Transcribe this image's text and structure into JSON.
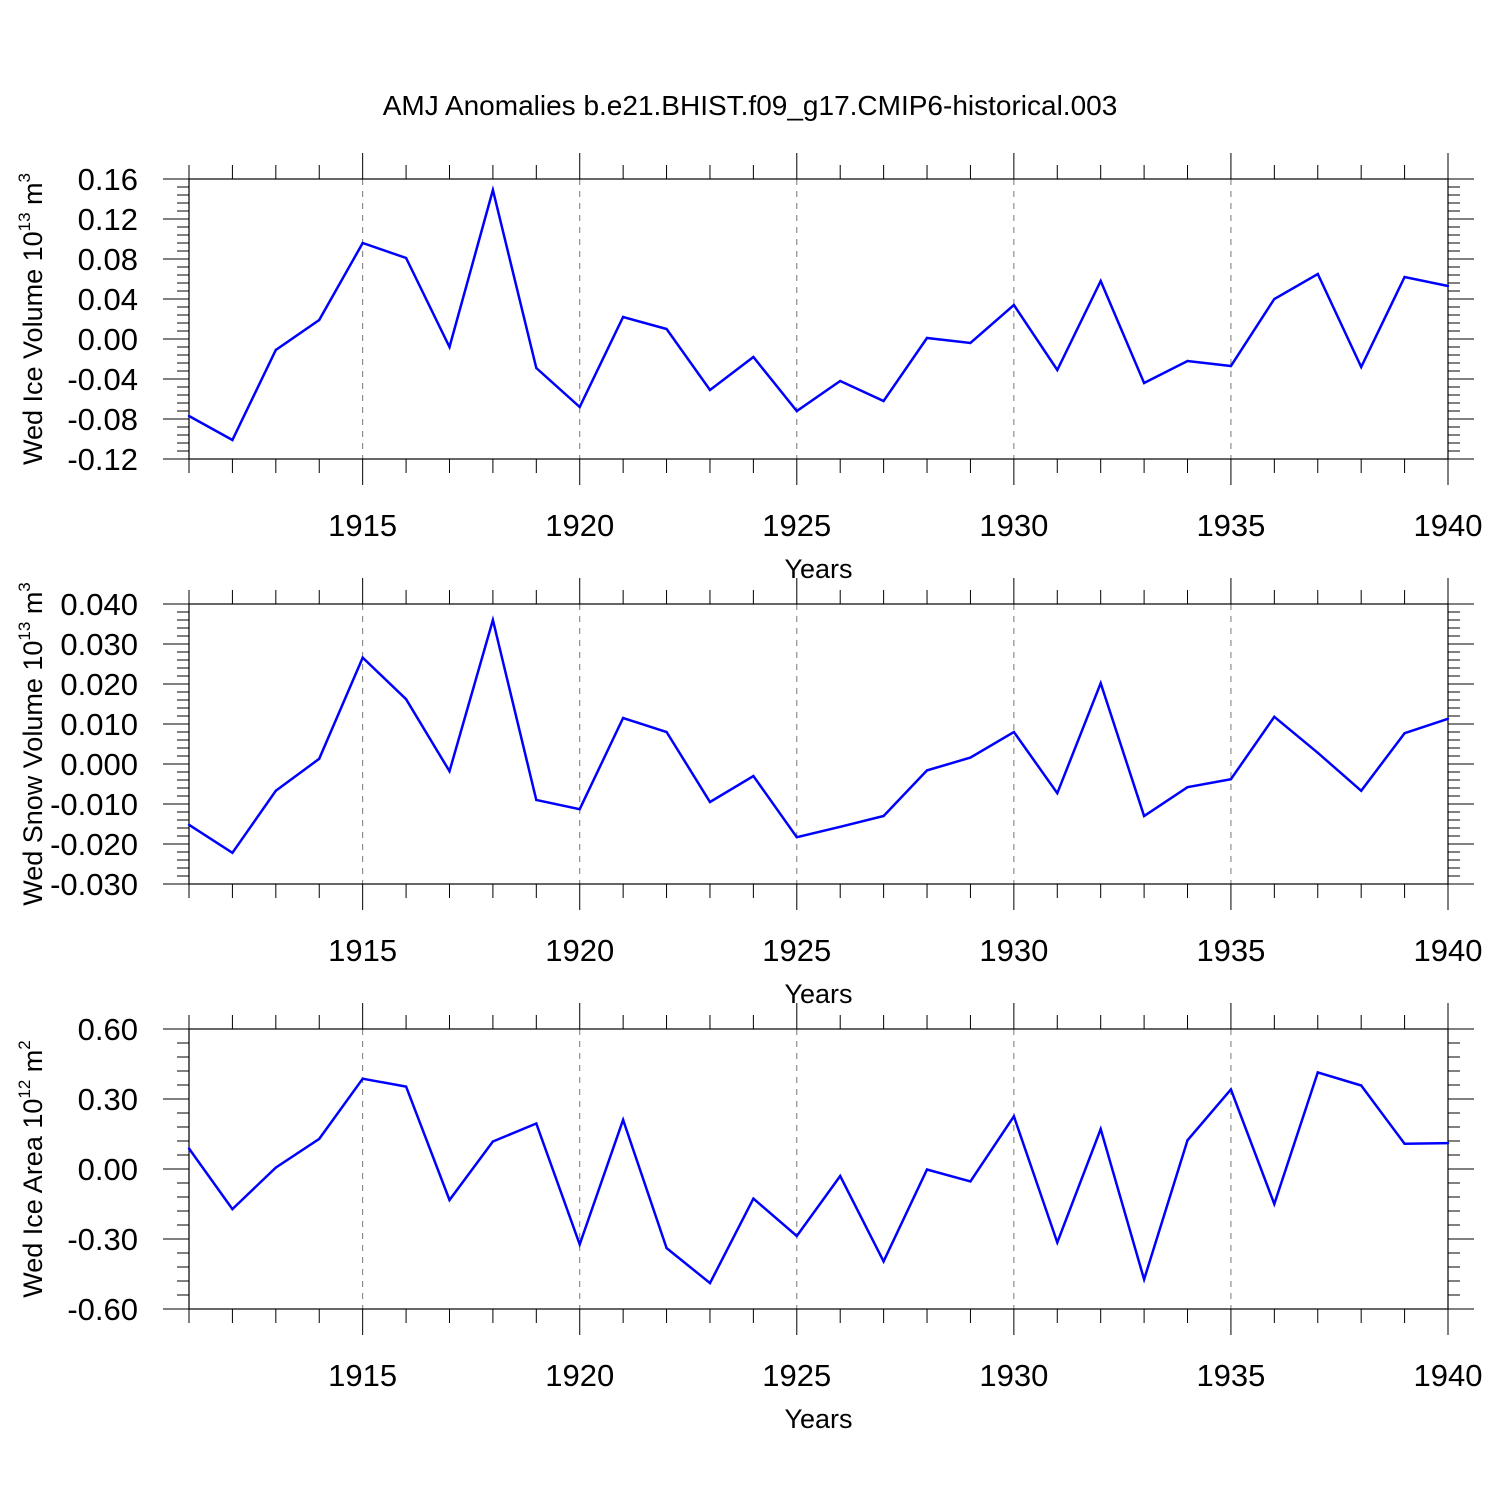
{
  "title": "AMJ Anomalies b.e21.BHIST.f09_g17.CMIP6-historical.003",
  "line_color": "#0000ff",
  "chart_data": [
    {
      "type": "line",
      "ylabel": {
        "main": "Wed Ice Volume 10",
        "exp": "13",
        "unit": " m",
        "unit_exp": "3"
      },
      "xlabel": "Years",
      "xlim": [
        1911,
        1940
      ],
      "ylim": [
        -0.12,
        0.16
      ],
      "yticks": [
        -0.12,
        -0.08,
        -0.04,
        0.0,
        0.04,
        0.08,
        0.12,
        0.16
      ],
      "ytick_labels": [
        "-0.12",
        "-0.08",
        "-0.04",
        "0.00",
        "0.04",
        "0.08",
        "0.12",
        "0.16"
      ],
      "yminor_step": 0.008,
      "xticks": [
        1915,
        1920,
        1925,
        1930,
        1935,
        1940
      ],
      "xtick_labels": [
        "1915",
        "1920",
        "1925",
        "1930",
        "1935",
        "1940"
      ],
      "x": [
        1911,
        1912,
        1913,
        1914,
        1915,
        1916,
        1917,
        1918,
        1919,
        1920,
        1921,
        1922,
        1923,
        1924,
        1925,
        1926,
        1927,
        1928,
        1929,
        1930,
        1931,
        1932,
        1933,
        1934,
        1935,
        1936,
        1937,
        1938,
        1939,
        1940
      ],
      "series": [
        {
          "name": "Wed Ice Volume",
          "values": [
            -0.077,
            -0.101,
            -0.011,
            0.019,
            0.096,
            0.081,
            -0.008,
            0.149,
            -0.029,
            -0.068,
            0.022,
            0.01,
            -0.051,
            -0.018,
            -0.072,
            -0.042,
            -0.062,
            0.001,
            -0.004,
            0.034,
            -0.031,
            0.058,
            -0.044,
            -0.022,
            -0.027,
            0.04,
            0.065,
            -0.028,
            0.062,
            0.053
          ]
        }
      ]
    },
    {
      "type": "line",
      "ylabel": {
        "main": "Wed Snow Volume 10",
        "exp": "13",
        "unit": " m",
        "unit_exp": "3"
      },
      "xlabel": "Years",
      "xlim": [
        1911,
        1940
      ],
      "ylim": [
        -0.03,
        0.04
      ],
      "yticks": [
        -0.03,
        -0.02,
        -0.01,
        0.0,
        0.01,
        0.02,
        0.03,
        0.04
      ],
      "ytick_labels": [
        "-0.030",
        "-0.020",
        "-0.010",
        "0.000",
        "0.010",
        "0.020",
        "0.030",
        "0.040"
      ],
      "yminor_step": 0.002,
      "xticks": [
        1915,
        1920,
        1925,
        1930,
        1935,
        1940
      ],
      "xtick_labels": [
        "1915",
        "1920",
        "1925",
        "1930",
        "1935",
        "1940"
      ],
      "x": [
        1911,
        1912,
        1913,
        1914,
        1915,
        1916,
        1917,
        1918,
        1919,
        1920,
        1921,
        1922,
        1923,
        1924,
        1925,
        1926,
        1927,
        1928,
        1929,
        1930,
        1931,
        1932,
        1933,
        1934,
        1935,
        1936,
        1937,
        1938,
        1939,
        1940
      ],
      "series": [
        {
          "name": "Wed Snow Volume",
          "values": [
            -0.0152,
            -0.0222,
            -0.0067,
            0.0013,
            0.0266,
            0.0162,
            -0.0018,
            0.036,
            -0.009,
            -0.0113,
            0.0115,
            0.008,
            -0.0095,
            -0.003,
            -0.0183,
            -0.0157,
            -0.013,
            -0.0016,
            0.0016,
            0.008,
            -0.0073,
            0.0202,
            -0.013,
            -0.0058,
            -0.0038,
            0.0118,
            0.0028,
            -0.0067,
            0.0077,
            0.0113
          ]
        }
      ]
    },
    {
      "type": "line",
      "ylabel": {
        "main": "Wed Ice Area 10",
        "exp": "12",
        "unit": " m",
        "unit_exp": "2"
      },
      "xlabel": "Years",
      "xlim": [
        1911,
        1940
      ],
      "ylim": [
        -0.6,
        0.6
      ],
      "yticks": [
        -0.6,
        -0.3,
        0.0,
        0.3,
        0.6
      ],
      "ytick_labels": [
        "-0.60",
        "-0.30",
        "0.00",
        "0.30",
        "0.60"
      ],
      "yminor_step": 0.06,
      "xticks": [
        1915,
        1920,
        1925,
        1930,
        1935,
        1940
      ],
      "xtick_labels": [
        "1915",
        "1920",
        "1925",
        "1930",
        "1935",
        "1940"
      ],
      "x": [
        1911,
        1912,
        1913,
        1914,
        1915,
        1916,
        1917,
        1918,
        1919,
        1920,
        1921,
        1922,
        1923,
        1924,
        1925,
        1926,
        1927,
        1928,
        1929,
        1930,
        1931,
        1932,
        1933,
        1934,
        1935,
        1936,
        1937,
        1938,
        1939,
        1940
      ],
      "series": [
        {
          "name": "Wed Ice Area",
          "values": [
            0.088,
            -0.172,
            0.006,
            0.129,
            0.387,
            0.353,
            -0.133,
            0.118,
            0.195,
            -0.323,
            0.211,
            -0.339,
            -0.489,
            -0.127,
            -0.287,
            -0.03,
            -0.396,
            -0.002,
            -0.053,
            0.226,
            -0.315,
            0.171,
            -0.473,
            0.123,
            0.341,
            -0.15,
            0.414,
            0.358,
            0.108,
            0.111
          ]
        }
      ]
    }
  ]
}
